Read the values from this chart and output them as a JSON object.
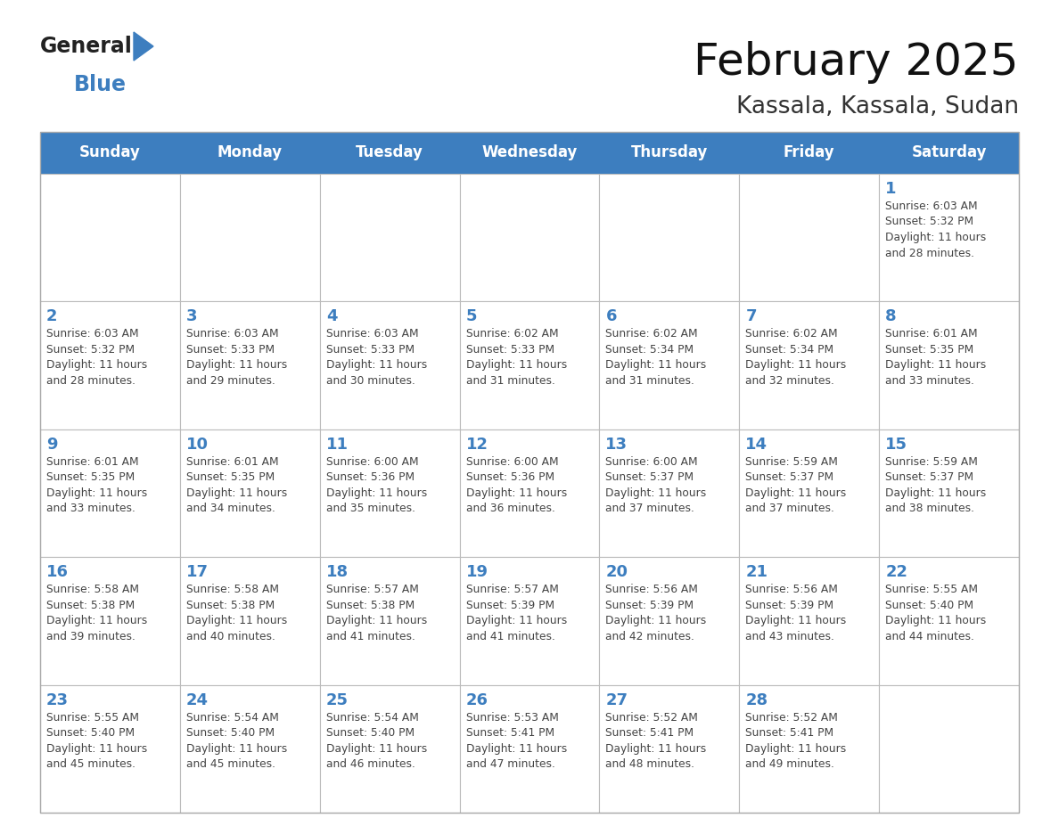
{
  "title": "February 2025",
  "subtitle": "Kassala, Kassala, Sudan",
  "header_bg": "#3d7ebf",
  "header_text": "#FFFFFF",
  "cell_bg": "#FFFFFF",
  "cell_border": "#CCCCCC",
  "day_number_color": "#3d7ebf",
  "info_text_color": "#444444",
  "days_of_week": [
    "Sunday",
    "Monday",
    "Tuesday",
    "Wednesday",
    "Thursday",
    "Friday",
    "Saturday"
  ],
  "logo_general_color": "#222222",
  "logo_blue_color": "#3d7ebf",
  "weeks": [
    [
      {
        "day": null,
        "sunrise": null,
        "sunset": null,
        "daylight": null
      },
      {
        "day": null,
        "sunrise": null,
        "sunset": null,
        "daylight": null
      },
      {
        "day": null,
        "sunrise": null,
        "sunset": null,
        "daylight": null
      },
      {
        "day": null,
        "sunrise": null,
        "sunset": null,
        "daylight": null
      },
      {
        "day": null,
        "sunrise": null,
        "sunset": null,
        "daylight": null
      },
      {
        "day": null,
        "sunrise": null,
        "sunset": null,
        "daylight": null
      },
      {
        "day": 1,
        "sunrise": "6:03 AM",
        "sunset": "5:32 PM",
        "daylight": "11 hours and 28 minutes."
      }
    ],
    [
      {
        "day": 2,
        "sunrise": "6:03 AM",
        "sunset": "5:32 PM",
        "daylight": "11 hours and 28 minutes."
      },
      {
        "day": 3,
        "sunrise": "6:03 AM",
        "sunset": "5:33 PM",
        "daylight": "11 hours and 29 minutes."
      },
      {
        "day": 4,
        "sunrise": "6:03 AM",
        "sunset": "5:33 PM",
        "daylight": "11 hours and 30 minutes."
      },
      {
        "day": 5,
        "sunrise": "6:02 AM",
        "sunset": "5:33 PM",
        "daylight": "11 hours and 31 minutes."
      },
      {
        "day": 6,
        "sunrise": "6:02 AM",
        "sunset": "5:34 PM",
        "daylight": "11 hours and 31 minutes."
      },
      {
        "day": 7,
        "sunrise": "6:02 AM",
        "sunset": "5:34 PM",
        "daylight": "11 hours and 32 minutes."
      },
      {
        "day": 8,
        "sunrise": "6:01 AM",
        "sunset": "5:35 PM",
        "daylight": "11 hours and 33 minutes."
      }
    ],
    [
      {
        "day": 9,
        "sunrise": "6:01 AM",
        "sunset": "5:35 PM",
        "daylight": "11 hours and 33 minutes."
      },
      {
        "day": 10,
        "sunrise": "6:01 AM",
        "sunset": "5:35 PM",
        "daylight": "11 hours and 34 minutes."
      },
      {
        "day": 11,
        "sunrise": "6:00 AM",
        "sunset": "5:36 PM",
        "daylight": "11 hours and 35 minutes."
      },
      {
        "day": 12,
        "sunrise": "6:00 AM",
        "sunset": "5:36 PM",
        "daylight": "11 hours and 36 minutes."
      },
      {
        "day": 13,
        "sunrise": "6:00 AM",
        "sunset": "5:37 PM",
        "daylight": "11 hours and 37 minutes."
      },
      {
        "day": 14,
        "sunrise": "5:59 AM",
        "sunset": "5:37 PM",
        "daylight": "11 hours and 37 minutes."
      },
      {
        "day": 15,
        "sunrise": "5:59 AM",
        "sunset": "5:37 PM",
        "daylight": "11 hours and 38 minutes."
      }
    ],
    [
      {
        "day": 16,
        "sunrise": "5:58 AM",
        "sunset": "5:38 PM",
        "daylight": "11 hours and 39 minutes."
      },
      {
        "day": 17,
        "sunrise": "5:58 AM",
        "sunset": "5:38 PM",
        "daylight": "11 hours and 40 minutes."
      },
      {
        "day": 18,
        "sunrise": "5:57 AM",
        "sunset": "5:38 PM",
        "daylight": "11 hours and 41 minutes."
      },
      {
        "day": 19,
        "sunrise": "5:57 AM",
        "sunset": "5:39 PM",
        "daylight": "11 hours and 41 minutes."
      },
      {
        "day": 20,
        "sunrise": "5:56 AM",
        "sunset": "5:39 PM",
        "daylight": "11 hours and 42 minutes."
      },
      {
        "day": 21,
        "sunrise": "5:56 AM",
        "sunset": "5:39 PM",
        "daylight": "11 hours and 43 minutes."
      },
      {
        "day": 22,
        "sunrise": "5:55 AM",
        "sunset": "5:40 PM",
        "daylight": "11 hours and 44 minutes."
      }
    ],
    [
      {
        "day": 23,
        "sunrise": "5:55 AM",
        "sunset": "5:40 PM",
        "daylight": "11 hours and 45 minutes."
      },
      {
        "day": 24,
        "sunrise": "5:54 AM",
        "sunset": "5:40 PM",
        "daylight": "11 hours and 45 minutes."
      },
      {
        "day": 25,
        "sunrise": "5:54 AM",
        "sunset": "5:40 PM",
        "daylight": "11 hours and 46 minutes."
      },
      {
        "day": 26,
        "sunrise": "5:53 AM",
        "sunset": "5:41 PM",
        "daylight": "11 hours and 47 minutes."
      },
      {
        "day": 27,
        "sunrise": "5:52 AM",
        "sunset": "5:41 PM",
        "daylight": "11 hours and 48 minutes."
      },
      {
        "day": 28,
        "sunrise": "5:52 AM",
        "sunset": "5:41 PM",
        "daylight": "11 hours and 49 minutes."
      },
      {
        "day": null,
        "sunrise": null,
        "sunset": null,
        "daylight": null
      }
    ]
  ],
  "fig_width": 11.88,
  "fig_height": 9.18,
  "dpi": 100
}
